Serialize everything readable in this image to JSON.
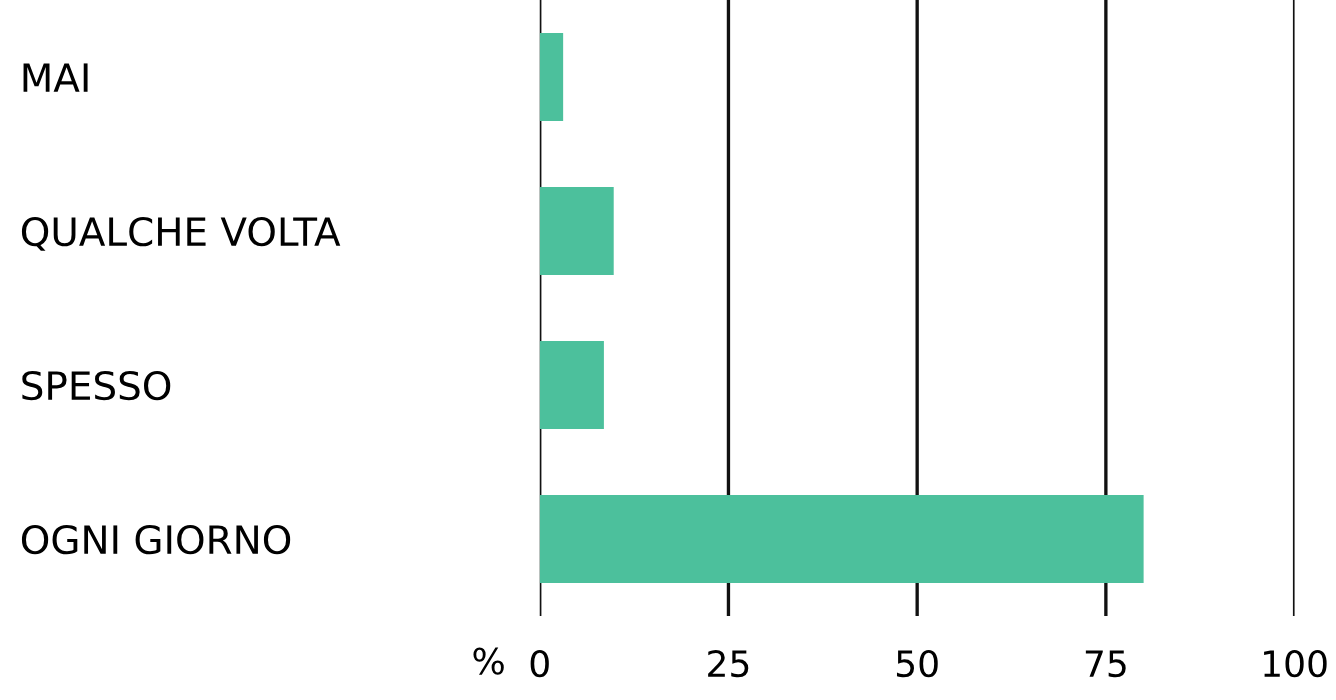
{
  "chart_data": {
    "type": "bar",
    "orientation": "horizontal",
    "xlabel": "%",
    "categories": [
      "MAI",
      "QUALCHE VOLTA",
      "SPESSO",
      "OGNI GIORNO"
    ],
    "values": [
      3.1,
      9.8,
      8.5,
      80
    ],
    "color": "#4cc09c",
    "xlim": [
      0,
      100
    ],
    "xticks": [
      0,
      25,
      50,
      75,
      100
    ],
    "grid": "x",
    "legend": false
  }
}
